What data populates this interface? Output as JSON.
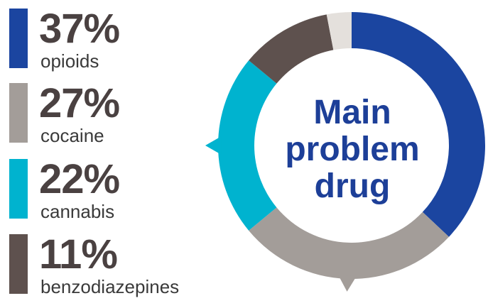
{
  "chart_data": {
    "type": "pie",
    "style": "donut",
    "center_title": [
      "Main",
      "problem",
      "drug"
    ],
    "series": [
      {
        "name": "opioids",
        "label": "37%",
        "value": 37,
        "color": "#1b45a0"
      },
      {
        "name": "cocaine",
        "label": "27%",
        "value": 27,
        "color": "#a39d99"
      },
      {
        "name": "cannabis",
        "label": "22%",
        "value": 22,
        "color": "#00b3cf"
      },
      {
        "name": "benzodiazepines",
        "label": "11%",
        "value": 11,
        "color": "#5e514e"
      }
    ],
    "other": {
      "value": 3,
      "color": "#e4e0dc"
    }
  }
}
